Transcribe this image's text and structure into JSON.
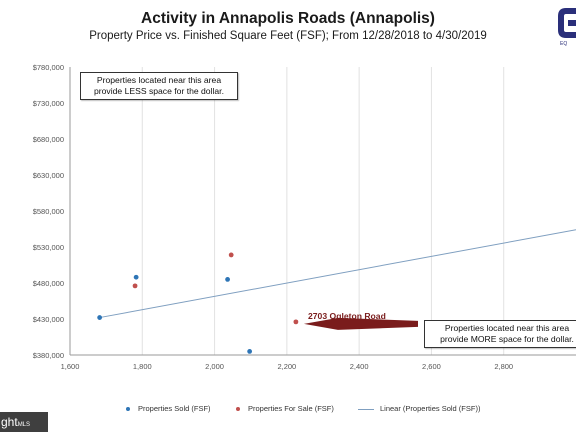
{
  "chart_data": {
    "type": "scatter",
    "title": "Activity in Annapolis Roads (Annapolis)",
    "subtitle": "Property Price vs. Finished Square Feet (FSF); From 12/28/2018 to 4/30/2019",
    "xlim": [
      1600,
      3000
    ],
    "ylim": [
      380000,
      780000
    ],
    "x_ticks": [
      1600,
      1800,
      2000,
      2200,
      2400,
      2600,
      2800
    ],
    "x_tick_labels": [
      "1,600",
      "1,800",
      "2,000",
      "2,200",
      "2,400",
      "2,600",
      "2,800"
    ],
    "y_ticks": [
      380000,
      430000,
      480000,
      530000,
      580000,
      630000,
      680000,
      730000,
      780000
    ],
    "y_tick_labels": [
      "$380,000",
      "$430,000",
      "$480,000",
      "$530,000",
      "$580,000",
      "$630,000",
      "$680,000",
      "$730,000",
      "$780,000"
    ],
    "grid": {
      "vertical": true,
      "horizontal": false
    },
    "legend_position": "bottom",
    "series": [
      {
        "name": "Properties Sold  (FSF)",
        "color": "#2e75b6",
        "points": [
          {
            "x": 1682,
            "y": 432000
          },
          {
            "x": 1783,
            "y": 488000
          },
          {
            "x": 2036,
            "y": 485000
          },
          {
            "x": 2097,
            "y": 385000
          }
        ]
      },
      {
        "name": "Properties For Sale  (FSF)",
        "color": "#c0504d",
        "points": [
          {
            "x": 1780,
            "y": 476000
          },
          {
            "x": 2046,
            "y": 519000
          },
          {
            "x": 2225,
            "y": 426000
          }
        ]
      }
    ],
    "trendline": {
      "name": "Linear (Properties Sold  (FSF))",
      "color": "#7f9fc0",
      "from": {
        "x": 1682,
        "y": 432000
      },
      "to": {
        "x": 3000,
        "y": 554000
      }
    },
    "annotations": {
      "box_top": {
        "line1": "Properties located near this area",
        "line2": "provide LESS space for the dollar."
      },
      "box_bottom": {
        "line1": "Properties located near this area",
        "line2": "provide MORE space for the dollar."
      },
      "callout_label": "2703 Ogleton Road",
      "callout_color": "#7a1c1c"
    }
  },
  "logo": {
    "text": "EQ",
    "color": "#2a2f7a",
    "icon": "logo-icon"
  },
  "watermark": {
    "text": "ght",
    "suffix": "MLS"
  }
}
